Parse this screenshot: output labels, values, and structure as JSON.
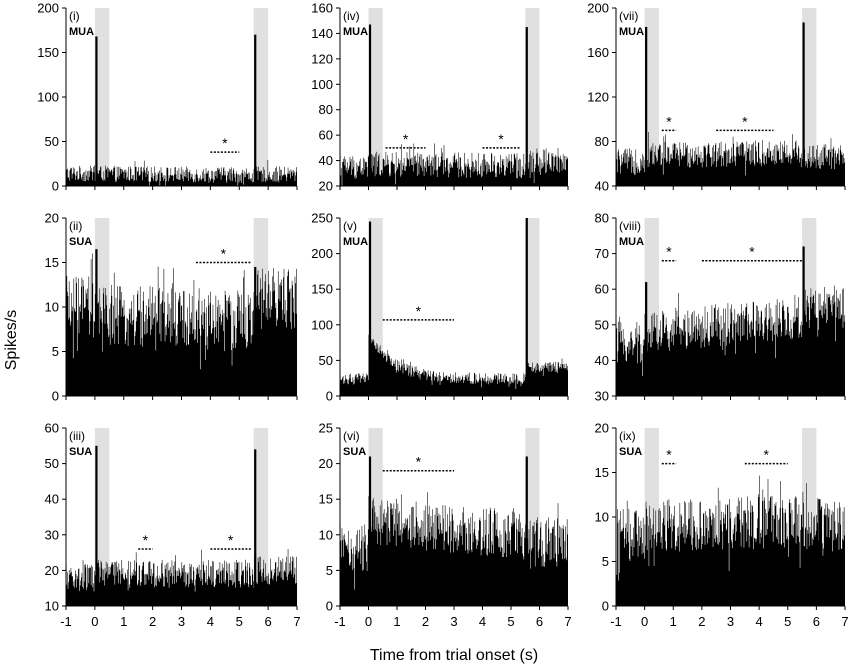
{
  "figure": {
    "ylabel": "Spikes/s",
    "xlabel": "Time from trial onset (s)"
  },
  "chart_data": [
    {
      "id": "p1",
      "panel": "(i)",
      "type_label": "MUA",
      "chart": "bar",
      "ylim": [
        0,
        200
      ],
      "yticks": [
        "0",
        "50",
        "100",
        "150",
        "200"
      ],
      "xlim": [
        -1,
        7
      ],
      "xticks": [
        "-1",
        "0",
        "1",
        "2",
        "3",
        "4",
        "5",
        "6",
        "7"
      ],
      "show_xticks": false,
      "shade": [
        [
          0,
          0.5
        ],
        [
          5.5,
          6
        ]
      ],
      "baseline": {
        "early": 14,
        "mid": 14,
        "late": 12,
        "post": 13,
        "noise": 9
      },
      "peaks": [
        {
          "x": 0.05,
          "y": 168
        },
        {
          "x": 5.55,
          "y": 170
        }
      ],
      "sig": [
        {
          "x0": 4,
          "x1": 5,
          "y": 38
        }
      ],
      "star": "*"
    },
    {
      "id": "p2",
      "panel": "(iv)",
      "type_label": "MUA",
      "chart": "bar",
      "ylim": [
        20,
        160
      ],
      "yticks": [
        "20",
        "40",
        "60",
        "80",
        "100",
        "120",
        "140",
        "160"
      ],
      "xlim": [
        -1,
        7
      ],
      "xticks": [
        "-1",
        "0",
        "1",
        "2",
        "3",
        "4",
        "5",
        "6",
        "7"
      ],
      "show_xticks": false,
      "shade": [
        [
          0,
          0.5
        ],
        [
          5.5,
          6
        ]
      ],
      "baseline": {
        "early": 35,
        "mid": 37,
        "late": 36,
        "post": 40,
        "noise": 10
      },
      "peaks": [
        {
          "x": 0.05,
          "y": 147
        },
        {
          "x": 5.55,
          "y": 145
        }
      ],
      "sig": [
        {
          "x0": 0.6,
          "x1": 2,
          "y": 50
        },
        {
          "x0": 4,
          "x1": 5.3,
          "y": 50
        }
      ],
      "star": "*"
    },
    {
      "id": "p3",
      "panel": "(vii)",
      "type_label": "MUA",
      "chart": "bar",
      "ylim": [
        40,
        200
      ],
      "yticks": [
        "40",
        "80",
        "120",
        "160",
        "200"
      ],
      "xlim": [
        -1,
        7
      ],
      "xticks": [
        "-1",
        "0",
        "1",
        "2",
        "3",
        "4",
        "5",
        "6",
        "7"
      ],
      "show_xticks": false,
      "shade": [
        [
          0,
          0.5
        ],
        [
          5.5,
          6
        ]
      ],
      "baseline": {
        "early": 62,
        "mid": 68,
        "late": 70,
        "post": 66,
        "noise": 12
      },
      "peaks": [
        {
          "x": 0.05,
          "y": 183
        },
        {
          "x": 5.55,
          "y": 187
        }
      ],
      "sig": [
        {
          "x0": 0.6,
          "x1": 1.1,
          "y": 90
        },
        {
          "x0": 2.5,
          "x1": 4.5,
          "y": 90
        }
      ],
      "star": "*"
    },
    {
      "id": "p4",
      "panel": "(ii)",
      "type_label": "SUA",
      "chart": "bar",
      "ylim": [
        0,
        20
      ],
      "yticks": [
        "0",
        "5",
        "10",
        "15",
        "20"
      ],
      "xlim": [
        -1,
        7
      ],
      "xticks": [
        "-1",
        "0",
        "1",
        "2",
        "3",
        "4",
        "5",
        "6",
        "7"
      ],
      "show_xticks": false,
      "shade": [
        [
          0,
          0.5
        ],
        [
          5.5,
          6
        ]
      ],
      "baseline": {
        "early": 10,
        "mid": 9,
        "late": 8.5,
        "post": 11,
        "noise": 3.5
      },
      "peaks": [
        {
          "x": 0.05,
          "y": 16.5
        },
        {
          "x": 5.55,
          "y": 14.5
        }
      ],
      "sig": [
        {
          "x0": 3.5,
          "x1": 5.4,
          "y": 15
        }
      ],
      "star": "*"
    },
    {
      "id": "p5",
      "panel": "(v)",
      "type_label": "MUA",
      "chart": "bar",
      "ylim": [
        0,
        250
      ],
      "yticks": [
        "0",
        "50",
        "100",
        "150",
        "200",
        "250"
      ],
      "xlim": [
        -1,
        7
      ],
      "xticks": [
        "-1",
        "0",
        "1",
        "2",
        "3",
        "4",
        "5",
        "6",
        "7"
      ],
      "show_xticks": false,
      "shade": [
        [
          0,
          0.5
        ],
        [
          5.5,
          6
        ]
      ],
      "baseline": {
        "early": 24,
        "mid": 40,
        "late": 25,
        "post": 40,
        "noise": 8
      },
      "peaks": [
        {
          "x": 0.05,
          "y": 245
        },
        {
          "x": 5.55,
          "y": 250
        }
      ],
      "sig": [
        {
          "x0": 0.5,
          "x1": 3,
          "y": 107
        }
      ],
      "star": "*",
      "decay": true
    },
    {
      "id": "p6",
      "panel": "(viii)",
      "type_label": "MUA",
      "chart": "bar",
      "ylim": [
        30,
        80
      ],
      "yticks": [
        "30",
        "40",
        "50",
        "60",
        "70",
        "80"
      ],
      "xlim": [
        -1,
        7
      ],
      "xticks": [
        "-1",
        "0",
        "1",
        "2",
        "3",
        "4",
        "5",
        "6",
        "7"
      ],
      "show_xticks": false,
      "shade": [
        [
          0,
          0.5
        ],
        [
          5.5,
          6
        ]
      ],
      "baseline": {
        "early": 45,
        "mid": 48,
        "late": 52,
        "post": 55,
        "noise": 6
      },
      "peaks": [
        {
          "x": 0.05,
          "y": 62
        },
        {
          "x": 5.55,
          "y": 72
        }
      ],
      "sig": [
        {
          "x0": 0.6,
          "x1": 1.1,
          "y": 68
        },
        {
          "x0": 2,
          "x1": 5.5,
          "y": 68
        }
      ],
      "star": "*"
    },
    {
      "id": "p7",
      "panel": "(iii)",
      "type_label": "SUA",
      "chart": "bar",
      "ylim": [
        10,
        60
      ],
      "yticks": [
        "10",
        "20",
        "30",
        "40",
        "50",
        "60"
      ],
      "xlim": [
        -1,
        7
      ],
      "xticks": [
        "-1",
        "0",
        "1",
        "2",
        "3",
        "4",
        "5",
        "6",
        "7"
      ],
      "show_xticks": true,
      "shade": [
        [
          0,
          0.5
        ],
        [
          5.5,
          6
        ]
      ],
      "baseline": {
        "early": 18,
        "mid": 19,
        "late": 19,
        "post": 20,
        "noise": 4
      },
      "peaks": [
        {
          "x": 0.05,
          "y": 55
        },
        {
          "x": 5.55,
          "y": 54
        }
      ],
      "sig": [
        {
          "x0": 1.5,
          "x1": 2,
          "y": 26
        },
        {
          "x0": 4,
          "x1": 5.4,
          "y": 26
        }
      ],
      "star": "*"
    },
    {
      "id": "p8",
      "panel": "(vi)",
      "type_label": "SUA",
      "chart": "bar",
      "ylim": [
        0,
        25
      ],
      "yticks": [
        "0",
        "5",
        "10",
        "15",
        "20",
        "25"
      ],
      "xlim": [
        -1,
        7
      ],
      "xticks": [
        "-1",
        "0",
        "1",
        "2",
        "3",
        "4",
        "5",
        "6",
        "7"
      ],
      "show_xticks": true,
      "shade": [
        [
          0,
          0.5
        ],
        [
          5.5,
          6
        ]
      ],
      "baseline": {
        "early": 8,
        "mid": 12,
        "late": 10,
        "post": 9,
        "noise": 3.5
      },
      "peaks": [
        {
          "x": 0.05,
          "y": 21
        },
        {
          "x": 5.55,
          "y": 21
        }
      ],
      "sig": [
        {
          "x0": 0.5,
          "x1": 3,
          "y": 19
        }
      ],
      "star": "*"
    },
    {
      "id": "p9",
      "panel": "(ix)",
      "type_label": "SUA",
      "chart": "bar",
      "ylim": [
        0,
        20
      ],
      "yticks": [
        "0",
        "5",
        "10",
        "15",
        "20"
      ],
      "xlim": [
        -1,
        7
      ],
      "xticks": [
        "-1",
        "0",
        "1",
        "2",
        "3",
        "4",
        "5",
        "6",
        "7"
      ],
      "show_xticks": true,
      "shade": [
        [
          0,
          0.5
        ],
        [
          5.5,
          6
        ]
      ],
      "baseline": {
        "early": 8,
        "mid": 9,
        "late": 9.5,
        "post": 9,
        "noise": 3
      },
      "peaks": [
        {
          "x": 6.1,
          "y": 12
        }
      ],
      "sig": [
        {
          "x0": 0.6,
          "x1": 1.1,
          "y": 16
        },
        {
          "x0": 3.5,
          "x1": 5,
          "y": 16
        }
      ],
      "star": "*"
    }
  ]
}
